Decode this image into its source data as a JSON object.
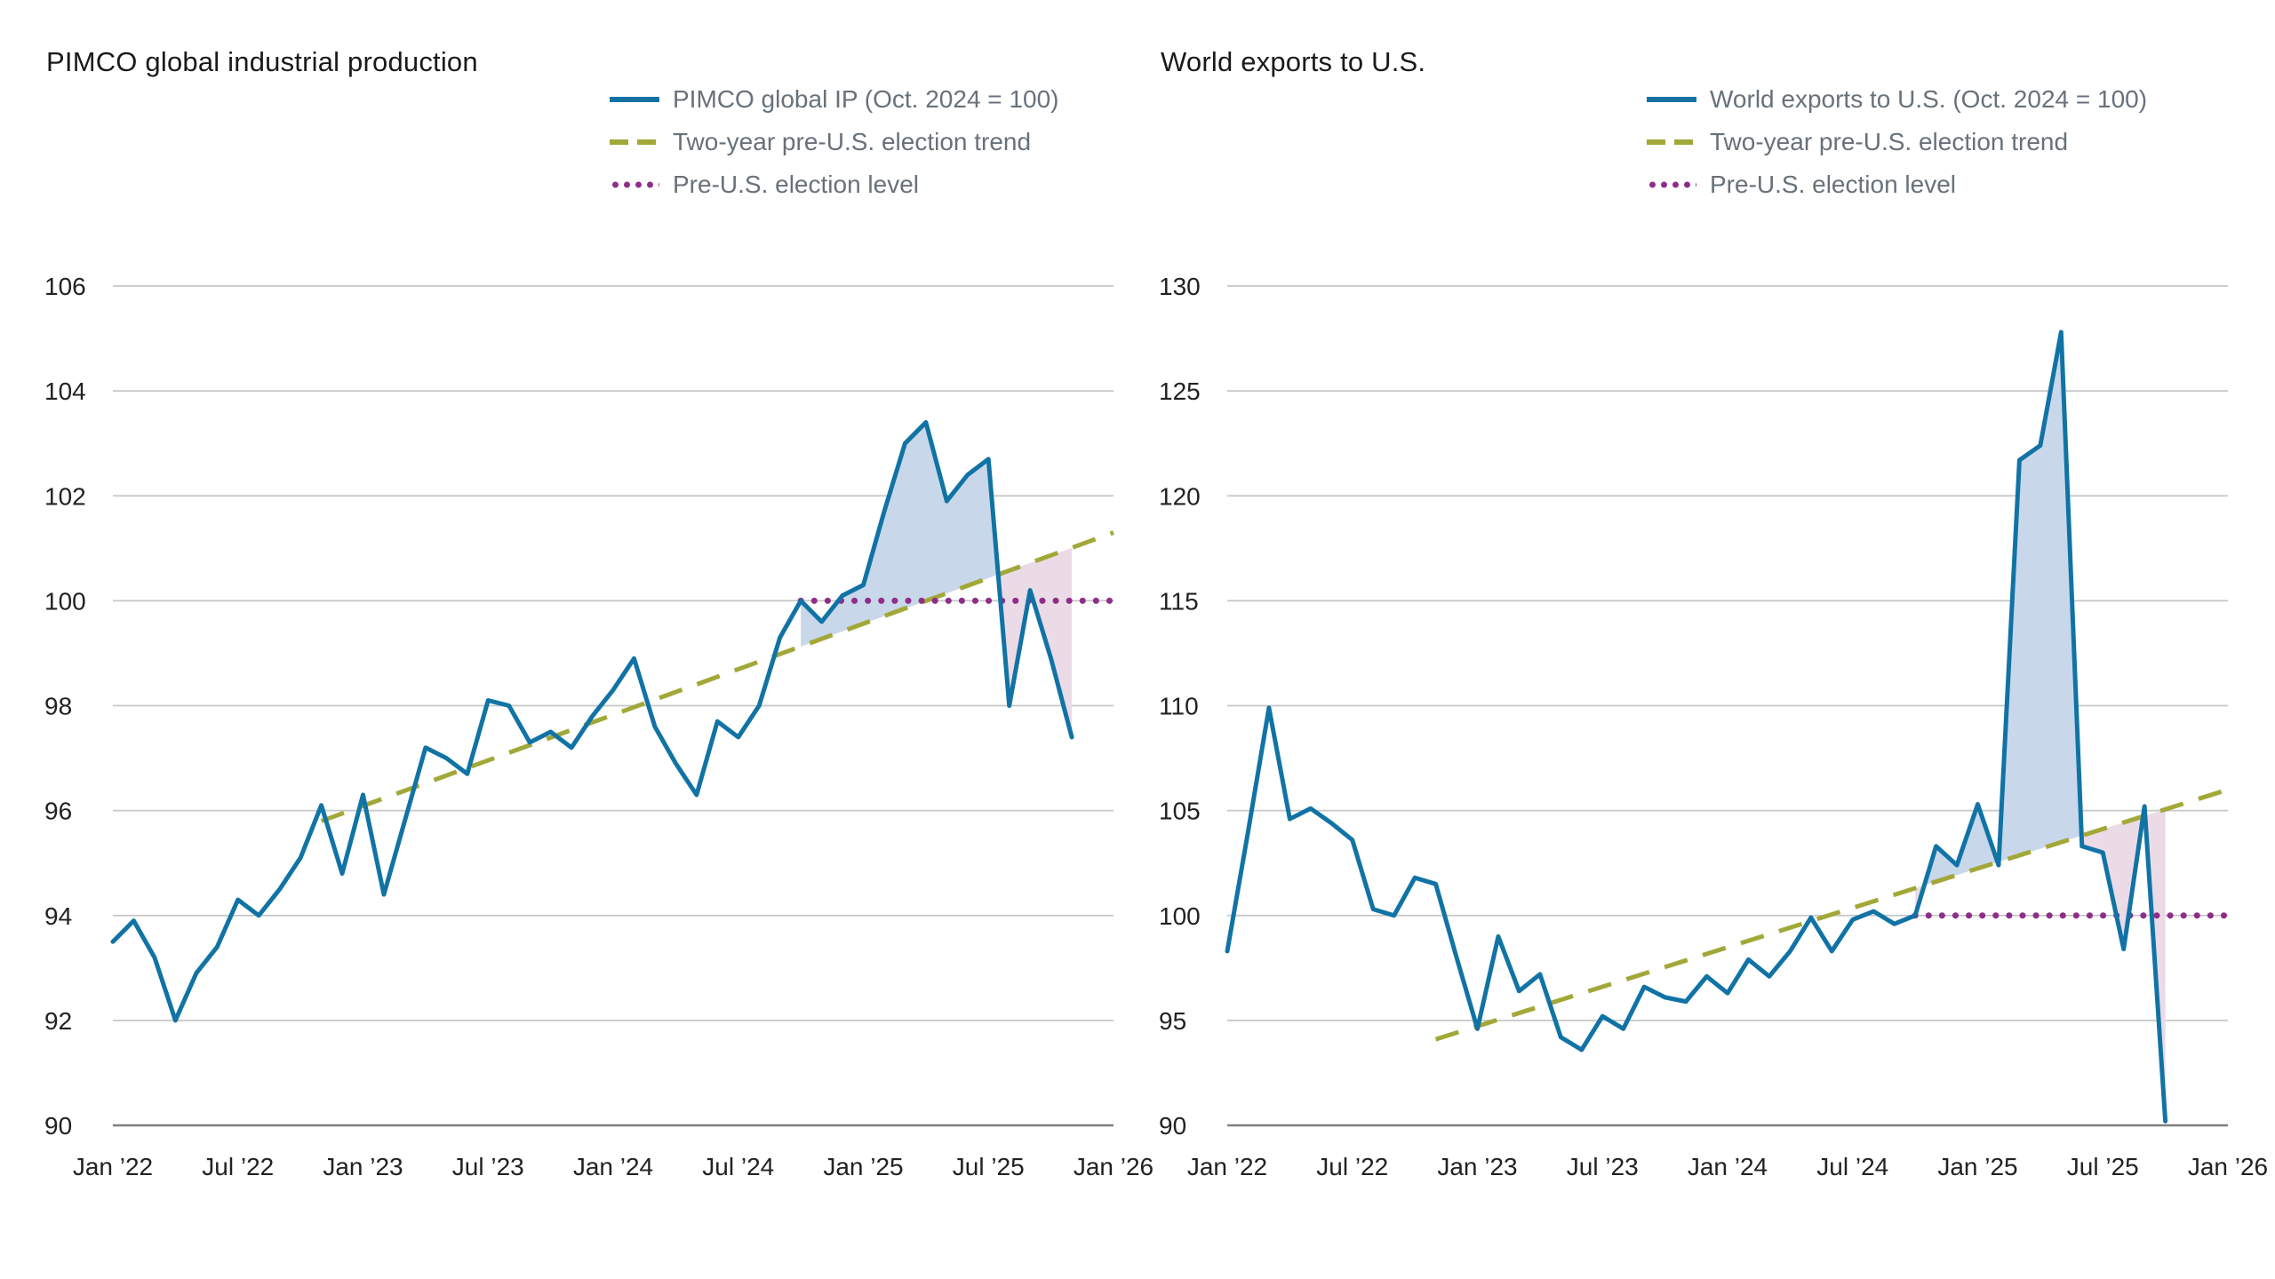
{
  "chart_data": [
    {
      "type": "line",
      "title": "PIMCO global industrial production",
      "xlabel": "",
      "ylabel": "",
      "x_unit": "month",
      "x_range": [
        0,
        48
      ],
      "x_tick_indices": [
        0,
        6,
        12,
        18,
        24,
        30,
        36,
        42,
        48
      ],
      "x_tick_labels": [
        "Jan ’22",
        "Jul ’22",
        "Jan ’23",
        "Jul ’23",
        "Jan ’24",
        "Jul ’24",
        "Jan ’25",
        "Jul ’25",
        "Jan ’26"
      ],
      "ylim": [
        90,
        106
      ],
      "y_ticks": [
        90,
        92,
        94,
        96,
        98,
        100,
        102,
        104,
        106
      ],
      "grid": "horizontal",
      "legend_position": "top-right",
      "series": [
        {
          "name": "PIMCO global IP (Oct. 2024 = 100)",
          "start_month": "Jan ’22",
          "values": [
            93.5,
            93.9,
            93.2,
            92.0,
            92.9,
            93.4,
            94.3,
            94.0,
            94.5,
            95.1,
            96.1,
            94.8,
            96.3,
            94.4,
            95.8,
            97.2,
            97.0,
            96.7,
            98.1,
            98.0,
            97.3,
            97.5,
            97.2,
            97.8,
            98.3,
            98.9,
            97.6,
            96.9,
            96.3,
            97.7,
            97.4,
            98.0,
            99.3,
            100.0,
            99.6,
            100.1,
            100.3,
            101.7,
            103.0,
            103.4,
            101.9,
            102.4,
            102.7,
            98.0,
            100.2,
            98.9,
            97.4
          ]
        }
      ],
      "trend": {
        "name": "Two-year pre-U.S. election trend",
        "start_index": 10,
        "start_value": 95.8,
        "end_index": 48,
        "end_value": 101.3
      },
      "level": {
        "name": "Pre-U.S. election level",
        "value": 100,
        "start_index": 33,
        "end_index": 48
      },
      "shading_start_index": 33,
      "colors": {
        "series": "#1173a5",
        "trend": "#a2a838",
        "level": "#8f2e88",
        "above_fill": "#c9d7ea",
        "below_fill": "#ebdbe6",
        "grid": "#c7c7c7",
        "axis": "#7f7f7f"
      },
      "legend": [
        {
          "label": "PIMCO global IP (Oct. 2024 = 100)",
          "style": "solid",
          "color": "#1173a5"
        },
        {
          "label": "Two-year pre-U.S. election trend",
          "style": "dashed",
          "color": "#a2a838"
        },
        {
          "label": "Pre-U.S. election level",
          "style": "dotted",
          "color": "#8f2e88"
        }
      ]
    },
    {
      "type": "line",
      "title": "World exports to U.S.",
      "xlabel": "",
      "ylabel": "",
      "x_unit": "month",
      "x_range": [
        0,
        48
      ],
      "x_tick_indices": [
        0,
        6,
        12,
        18,
        24,
        30,
        36,
        42,
        48
      ],
      "x_tick_labels": [
        "Jan ’22",
        "Jul ’22",
        "Jan ’23",
        "Jul ’23",
        "Jan ’24",
        "Jul ’24",
        "Jan ’25",
        "Jul ’25",
        "Jan ’26"
      ],
      "ylim": [
        90,
        130
      ],
      "y_ticks": [
        90,
        95,
        100,
        105,
        110,
        115,
        120,
        125,
        130
      ],
      "grid": "horizontal",
      "legend_position": "top-right",
      "series": [
        {
          "name": "World exports to U.S. (Oct. 2024 = 100)",
          "start_month": "Jan ’22",
          "values": [
            98.3,
            104.0,
            109.9,
            104.6,
            105.1,
            104.4,
            103.6,
            100.3,
            100.0,
            101.8,
            101.5,
            98.0,
            94.6,
            99.0,
            96.4,
            97.2,
            94.2,
            93.6,
            95.2,
            94.6,
            96.6,
            96.1,
            95.9,
            97.1,
            96.3,
            97.9,
            97.1,
            98.3,
            99.9,
            98.3,
            99.8,
            100.2,
            99.6,
            100.0,
            103.3,
            102.4,
            105.3,
            102.4,
            121.7,
            122.4,
            127.8,
            103.3,
            103.0,
            98.4,
            105.2,
            90.2
          ]
        }
      ],
      "trend": {
        "name": "Two-year pre-U.S. election trend",
        "start_index": 10,
        "start_value": 94.1,
        "end_index": 48,
        "end_value": 106.0
      },
      "level": {
        "name": "Pre-U.S. election level",
        "value": 100,
        "start_index": 33,
        "end_index": 48
      },
      "shading_start_index": 33,
      "colors": {
        "series": "#1173a5",
        "trend": "#a2a838",
        "level": "#8f2e88",
        "above_fill": "#c9d7ea",
        "below_fill": "#ebdbe6",
        "grid": "#c7c7c7",
        "axis": "#7f7f7f"
      },
      "legend": [
        {
          "label": "World exports to U.S. (Oct. 2024 = 100)",
          "style": "solid",
          "color": "#1173a5"
        },
        {
          "label": "Two-year pre-U.S. election trend",
          "style": "dashed",
          "color": "#a2a838"
        },
        {
          "label": "Pre-U.S. election level",
          "style": "dotted",
          "color": "#8f2e88"
        }
      ]
    }
  ]
}
